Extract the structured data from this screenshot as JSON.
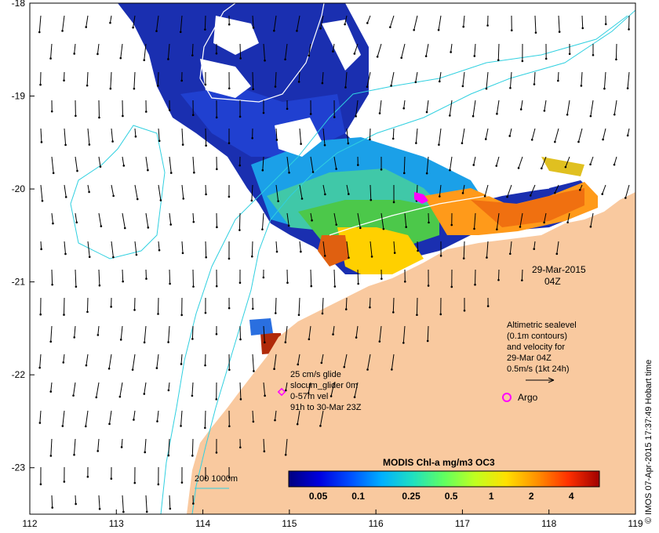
{
  "map": {
    "title": "MODIS Chl-a mg/m3 OC3",
    "date_label": "29-Mar-2015",
    "time_label": "04Z",
    "x_ticks": [
      "112",
      "113",
      "114",
      "115",
      "116",
      "117",
      "118",
      "119"
    ],
    "y_ticks": [
      "-18",
      "-19",
      "-20",
      "-21",
      "-22",
      "-23"
    ],
    "lon_range": [
      112,
      119
    ],
    "lat_range": [
      -23.5,
      -18
    ],
    "colorbar_ticks": [
      "0.05",
      "0.1",
      "0.25",
      "0.5",
      "1",
      "2",
      "4"
    ],
    "colorbar_colors": [
      "#00007f",
      "#0000e0",
      "#0050ff",
      "#00b0ff",
      "#20e0c0",
      "#60ff60",
      "#c0ff20",
      "#ffe000",
      "#ff9000",
      "#ff3000",
      "#a00000"
    ],
    "bathy_label": "200  1000m",
    "altimetry_text": [
      "Altimetric sealevel",
      "(0.1m contours)",
      "and velocity for",
      "29-Mar 04Z",
      "0.5m/s (1kt 24h)"
    ],
    "glider_text": [
      "25 cm/s glide",
      "slocum_glider 0m",
      "0-57m vel",
      "91h to 30-Mar 23Z"
    ],
    "argo_label": "Argo",
    "credit": "© IMOS 07-Apr-2015 17:37:49 Hobart time",
    "colors": {
      "land": "#f9c99f",
      "bathy": "#30d0e0",
      "marker": "#ff00ff"
    }
  }
}
